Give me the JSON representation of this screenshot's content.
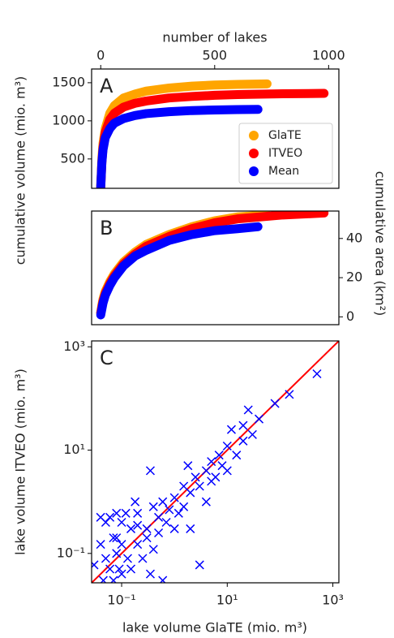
{
  "chart_data": [
    {
      "type": "line",
      "panel_label": "A",
      "xlabel": "number of lakes",
      "ylabel": "cumulative volume (mio. m³)",
      "xlim": [
        -40,
        1045
      ],
      "xticks": [
        0,
        500,
        1000
      ],
      "ylim": [
        115,
        1680
      ],
      "yticks": [
        500,
        1000,
        1500
      ],
      "legend": "lower right",
      "series": [
        {
          "name": "GlaTE",
          "color": "#ffa500",
          "x": [
            0,
            5,
            10,
            20,
            40,
            60,
            100,
            150,
            200,
            300,
            400,
            500,
            600,
            730
          ],
          "values": [
            150,
            500,
            700,
            900,
            1100,
            1200,
            1300,
            1350,
            1390,
            1430,
            1455,
            1470,
            1478,
            1485
          ]
        },
        {
          "name": "ITVEO",
          "color": "#ff0000",
          "x": [
            0,
            5,
            10,
            20,
            40,
            60,
            100,
            150,
            200,
            300,
            400,
            500,
            600,
            800,
            980
          ],
          "values": [
            120,
            450,
            650,
            850,
            1020,
            1100,
            1180,
            1230,
            1260,
            1300,
            1320,
            1335,
            1345,
            1355,
            1360
          ]
        },
        {
          "name": "Mean",
          "color": "#0000ff",
          "x": [
            0,
            5,
            10,
            20,
            40,
            60,
            100,
            150,
            200,
            300,
            400,
            500,
            600,
            690
          ],
          "values": [
            130,
            450,
            620,
            780,
            900,
            970,
            1030,
            1070,
            1095,
            1120,
            1135,
            1143,
            1148,
            1150
          ]
        }
      ]
    },
    {
      "type": "line",
      "panel_label": "B",
      "y2label": "cumulative area (km²)",
      "xlim": [
        -40,
        1045
      ],
      "y2lim": [
        -4,
        54
      ],
      "y2ticks": [
        0,
        20,
        40
      ],
      "series": [
        {
          "color": "#ffa500",
          "axis": "y2",
          "x": [
            0,
            5,
            10,
            20,
            40,
            60,
            100,
            150,
            200,
            300,
            400,
            500,
            600,
            730
          ],
          "values": [
            2,
            6,
            9,
            13,
            18,
            22,
            28,
            33,
            37,
            42,
            46,
            49,
            51,
            52
          ]
        },
        {
          "color": "#ff0000",
          "axis": "y2",
          "x": [
            0,
            5,
            10,
            20,
            40,
            60,
            100,
            150,
            200,
            300,
            400,
            500,
            600,
            800,
            980
          ],
          "values": [
            2,
            5,
            8,
            12,
            17,
            21,
            27,
            32,
            36,
            41,
            45,
            48,
            50,
            52,
            53
          ]
        },
        {
          "color": "#0000ff",
          "axis": "y2",
          "x": [
            0,
            5,
            10,
            20,
            40,
            60,
            100,
            150,
            200,
            300,
            400,
            500,
            600,
            690
          ],
          "values": [
            1,
            4,
            7,
            11,
            16,
            20,
            26,
            31,
            34,
            39,
            42,
            44,
            45,
            46
          ]
        }
      ]
    },
    {
      "type": "scatter",
      "panel_label": "C",
      "xlabel": "lake volume GlaTE (mio. m³)",
      "ylabel": "lake volume ITVEO (mio. m³)",
      "xscale": "log",
      "yscale": "log",
      "color": "#0000ff",
      "line_color": "#ff0000",
      "xlim": [
        0.027,
        1300
      ],
      "ylim": [
        0.027,
        1300
      ],
      "xticks": [
        {
          "value": 0.1,
          "label": "10⁻¹"
        },
        {
          "value": 10,
          "label": "10¹"
        },
        {
          "value": 1000,
          "label": "10³"
        }
      ],
      "yticks": [
        {
          "value": 0.1,
          "label": "10⁻¹"
        },
        {
          "value": 10,
          "label": "10¹"
        },
        {
          "value": 1000,
          "label": "10³"
        }
      ],
      "x": [
        0.03,
        0.035,
        0.04,
        0.045,
        0.05,
        0.05,
        0.06,
        0.06,
        0.07,
        0.07,
        0.08,
        0.08,
        0.09,
        0.1,
        0.1,
        0.1,
        0.12,
        0.13,
        0.15,
        0.15,
        0.18,
        0.2,
        0.2,
        0.25,
        0.3,
        0.3,
        0.35,
        0.4,
        0.4,
        0.5,
        0.5,
        0.6,
        0.6,
        0.7,
        0.8,
        1,
        1,
        1.2,
        1.5,
        1.5,
        2,
        2,
        2.5,
        3,
        3,
        4,
        4,
        5,
        5,
        6,
        7,
        8,
        10,
        10,
        12,
        15,
        20,
        20,
        25,
        30,
        40,
        80,
        150,
        500,
        0.08,
        0.2,
        0.35,
        1.8,
        0.04
      ],
      "values": [
        0.06,
        0.02,
        0.5,
        0.03,
        0.4,
        0.08,
        0.5,
        0.05,
        0.2,
        0.03,
        0.6,
        0.1,
        0.05,
        0.4,
        0.15,
        0.04,
        0.6,
        0.08,
        0.3,
        0.05,
        1,
        0.15,
        0.6,
        0.08,
        0.3,
        0.2,
        4,
        0.8,
        0.12,
        0.5,
        0.25,
        1,
        0.03,
        0.4,
        0.7,
        1.2,
        0.3,
        0.6,
        2,
        0.8,
        0.3,
        1.5,
        3,
        2,
        0.06,
        4,
        1,
        6,
        2.5,
        3,
        8,
        5,
        12,
        4,
        25,
        8,
        30,
        15,
        60,
        20,
        40,
        80,
        120,
        300,
        0.2,
        0.35,
        0.04,
        5,
        0.15
      ]
    }
  ]
}
